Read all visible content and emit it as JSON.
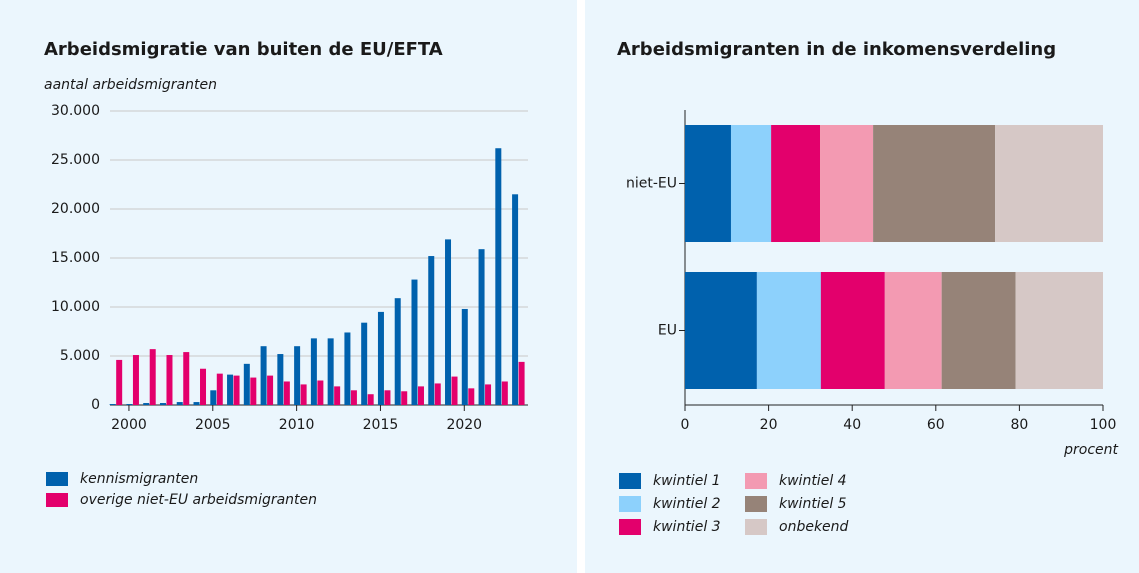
{
  "chart_data": [
    {
      "type": "bar",
      "title": "Arbeidsmigratie van buiten de EU/EFTA",
      "ylabel": "aantal arbeidsmigranten",
      "x": [
        1999,
        2000,
        2001,
        2002,
        2003,
        2004,
        2005,
        2006,
        2007,
        2008,
        2009,
        2010,
        2011,
        2012,
        2013,
        2014,
        2015,
        2016,
        2017,
        2018,
        2019,
        2020,
        2021,
        2022,
        2023
      ],
      "series": [
        {
          "name": "kennismigranten",
          "color": "#0061ad",
          "values": [
            100,
            100,
            200,
            200,
            300,
            300,
            1500,
            3100,
            4200,
            6000,
            5200,
            6000,
            6800,
            6800,
            7400,
            8400,
            9500,
            10900,
            12800,
            15200,
            16900,
            9800,
            15900,
            26200,
            21500
          ]
        },
        {
          "name": "overige niet-EU arbeidsmigranten",
          "color": "#e3006c",
          "values": [
            4600,
            5100,
            5700,
            5100,
            5400,
            3700,
            3200,
            3000,
            2800,
            3000,
            2400,
            2100,
            2500,
            1900,
            1500,
            1100,
            1500,
            1400,
            1900,
            2200,
            2900,
            1700,
            2100,
            2400,
            4400
          ]
        }
      ],
      "xlim": [
        1998.87,
        2023.8
      ],
      "xticks": [
        2000,
        2005,
        2010,
        2015,
        2020
      ],
      "ylim": [
        0,
        30000
      ],
      "yticks": [
        0,
        {
          "value": 5000,
          "label": "5.000"
        },
        {
          "value": 10000,
          "label": "10.000"
        },
        {
          "value": 15000,
          "label": "15.000"
        },
        {
          "value": 20000,
          "label": "20.000"
        },
        {
          "value": 25000,
          "label": "25.000"
        },
        {
          "value": 30000,
          "label": "30.000"
        }
      ],
      "grid": true
    },
    {
      "type": "stacked_barh",
      "title": "Arbeidsmigranten in de inkomensverdeling",
      "xlabel": "procent",
      "categories": [
        "niet-EU",
        "EU"
      ],
      "series": [
        {
          "name": "kwintiel 1",
          "color": "#0061ad",
          "values": [
            11,
            17.2
          ]
        },
        {
          "name": "kwintiel 2",
          "color": "#8dd1fc",
          "values": [
            9.6,
            15.3
          ]
        },
        {
          "name": "kwintiel 3",
          "color": "#e3006c",
          "values": [
            11.7,
            15.3
          ]
        },
        {
          "name": "kwintiel 4",
          "color": "#f39ab2",
          "values": [
            12.7,
            13.6
          ]
        },
        {
          "name": "kwintiel 5",
          "color": "#968378",
          "values": [
            29.2,
            17.7
          ]
        },
        {
          "name": "onbekend",
          "color": "#d6c8c6",
          "values": [
            25.8,
            20.9
          ]
        }
      ],
      "xlim": [
        0,
        100
      ],
      "xticks": [
        0,
        20,
        40,
        60,
        80,
        100
      ],
      "grid": false
    }
  ]
}
